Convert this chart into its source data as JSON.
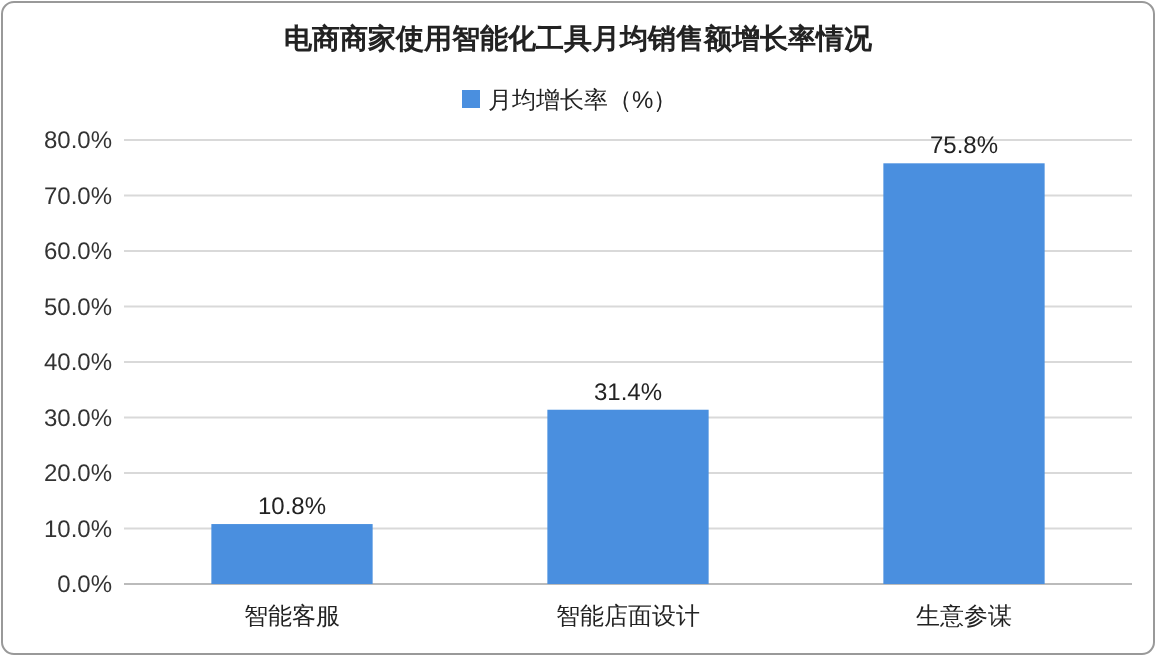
{
  "chart_data": {
    "type": "bar",
    "title": "电商商家使用智能化工具月均销售额增长率情况",
    "categories": [
      "智能客服",
      "智能店面设计",
      "生意参谋"
    ],
    "series": [
      {
        "name": "月均增长率（%）",
        "color": "#4a8fdf",
        "values": [
          10.8,
          31.4,
          75.8
        ],
        "value_labels": [
          "10.8%",
          "31.4%",
          "75.8%"
        ]
      }
    ],
    "ylim": [
      0,
      80
    ],
    "yticks": [
      {
        "value": 0,
        "label": "0.0%"
      },
      {
        "value": 10,
        "label": "10.0%"
      },
      {
        "value": 20,
        "label": "20.0%"
      },
      {
        "value": 30,
        "label": "30.0%"
      },
      {
        "value": 40,
        "label": "40.0%"
      },
      {
        "value": 50,
        "label": "50.0%"
      },
      {
        "value": 60,
        "label": "60.0%"
      },
      {
        "value": 70,
        "label": "70.0%"
      },
      {
        "value": 80,
        "label": "80.0%"
      }
    ],
    "grid": "y",
    "legend": "top"
  }
}
